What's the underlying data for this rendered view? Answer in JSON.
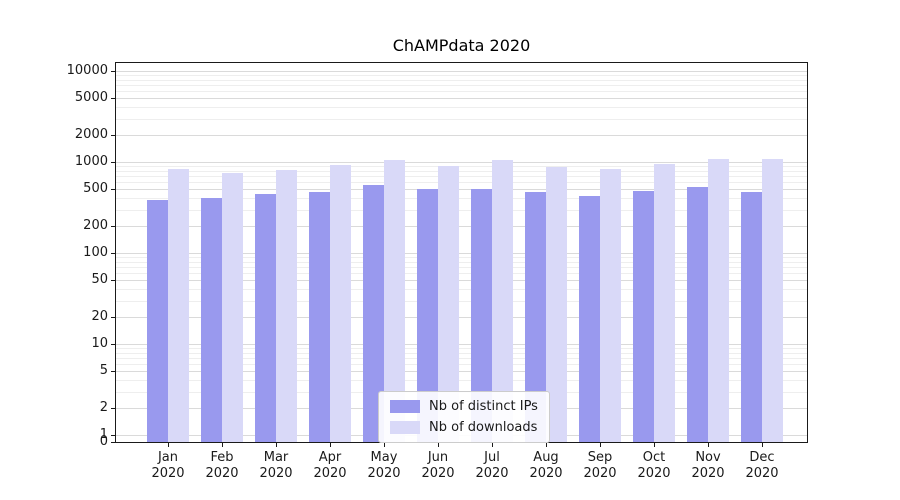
{
  "chart_data": {
    "type": "bar",
    "title": "ChAMPdata 2020",
    "xlabel": "",
    "ylabel": "",
    "yscale": "symlog",
    "grid": "horizontal",
    "legend_position": "lower center inside",
    "yticks": [
      0,
      1,
      2,
      5,
      10,
      20,
      50,
      100,
      200,
      500,
      1000,
      2000,
      5000,
      10000
    ],
    "ylim": [
      0,
      12900
    ],
    "categories": [
      "Jan 2020",
      "Feb 2020",
      "Mar 2020",
      "Apr 2020",
      "May 2020",
      "Jun 2020",
      "Jul 2020",
      "Aug 2020",
      "Sep 2020",
      "Oct 2020",
      "Nov 2020",
      "Dec 2020"
    ],
    "series": [
      {
        "name": "Nb of distinct IPs",
        "color": "#9999ee",
        "values": [
          380,
          400,
          440,
          465,
          560,
          500,
          510,
          465,
          420,
          480,
          530,
          465
        ]
      },
      {
        "name": "Nb of downloads",
        "color": "#d9d9f8",
        "values": [
          830,
          760,
          810,
          930,
          1050,
          910,
          1040,
          890,
          830,
          950,
          1090,
          1080
        ]
      }
    ]
  }
}
